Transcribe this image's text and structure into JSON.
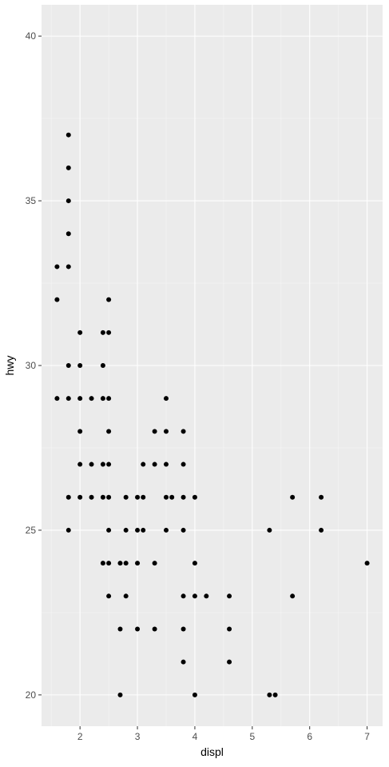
{
  "chart_data": {
    "type": "scatter",
    "title": "",
    "xlabel": "displ",
    "ylabel": "hwy",
    "xlim": [
      1.33,
      7.27
    ],
    "ylim": [
      19.05,
      40.95
    ],
    "x_ticks": [
      2,
      3,
      4,
      5,
      6,
      7
    ],
    "y_ticks": [
      20,
      25,
      30,
      35,
      40
    ],
    "grid": true,
    "legend": "none",
    "colors": {
      "panel": "#ebebeb",
      "grid_major": "#ffffff",
      "grid_minor": "#f5f5f5",
      "point": "#000000",
      "tick_text": "#4d4d4d",
      "tick_mark": "#333333"
    },
    "points": [
      {
        "x": 1.8,
        "y": 37
      },
      {
        "x": 1.8,
        "y": 36
      },
      {
        "x": 1.8,
        "y": 35
      },
      {
        "x": 1.8,
        "y": 34
      },
      {
        "x": 1.6,
        "y": 33
      },
      {
        "x": 1.8,
        "y": 33
      },
      {
        "x": 1.6,
        "y": 32
      },
      {
        "x": 2.5,
        "y": 32
      },
      {
        "x": 2.0,
        "y": 31
      },
      {
        "x": 2.4,
        "y": 31
      },
      {
        "x": 2.5,
        "y": 31
      },
      {
        "x": 1.8,
        "y": 30
      },
      {
        "x": 2.0,
        "y": 30
      },
      {
        "x": 2.4,
        "y": 30
      },
      {
        "x": 1.6,
        "y": 29
      },
      {
        "x": 1.8,
        "y": 29
      },
      {
        "x": 2.0,
        "y": 29
      },
      {
        "x": 2.2,
        "y": 29
      },
      {
        "x": 2.4,
        "y": 29
      },
      {
        "x": 2.5,
        "y": 29
      },
      {
        "x": 3.5,
        "y": 29
      },
      {
        "x": 2.0,
        "y": 28
      },
      {
        "x": 2.5,
        "y": 28
      },
      {
        "x": 3.3,
        "y": 28
      },
      {
        "x": 3.5,
        "y": 28
      },
      {
        "x": 3.8,
        "y": 28
      },
      {
        "x": 2.0,
        "y": 27
      },
      {
        "x": 2.2,
        "y": 27
      },
      {
        "x": 2.4,
        "y": 27
      },
      {
        "x": 2.5,
        "y": 27
      },
      {
        "x": 3.1,
        "y": 27
      },
      {
        "x": 3.3,
        "y": 27
      },
      {
        "x": 3.5,
        "y": 27
      },
      {
        "x": 3.8,
        "y": 27
      },
      {
        "x": 1.8,
        "y": 26
      },
      {
        "x": 2.0,
        "y": 26
      },
      {
        "x": 2.2,
        "y": 26
      },
      {
        "x": 2.4,
        "y": 26
      },
      {
        "x": 2.5,
        "y": 26
      },
      {
        "x": 2.8,
        "y": 26
      },
      {
        "x": 3.0,
        "y": 26
      },
      {
        "x": 3.1,
        "y": 26
      },
      {
        "x": 3.5,
        "y": 26
      },
      {
        "x": 3.6,
        "y": 26
      },
      {
        "x": 3.8,
        "y": 26
      },
      {
        "x": 4.0,
        "y": 26
      },
      {
        "x": 5.7,
        "y": 26
      },
      {
        "x": 6.2,
        "y": 26
      },
      {
        "x": 1.8,
        "y": 25
      },
      {
        "x": 2.5,
        "y": 25
      },
      {
        "x": 2.8,
        "y": 25
      },
      {
        "x": 3.0,
        "y": 25
      },
      {
        "x": 3.1,
        "y": 25
      },
      {
        "x": 3.5,
        "y": 25
      },
      {
        "x": 3.8,
        "y": 25
      },
      {
        "x": 5.3,
        "y": 25
      },
      {
        "x": 6.2,
        "y": 25
      },
      {
        "x": 2.4,
        "y": 24
      },
      {
        "x": 2.5,
        "y": 24
      },
      {
        "x": 2.7,
        "y": 24
      },
      {
        "x": 2.8,
        "y": 24
      },
      {
        "x": 3.0,
        "y": 24
      },
      {
        "x": 3.3,
        "y": 24
      },
      {
        "x": 4.0,
        "y": 24
      },
      {
        "x": 7.0,
        "y": 24
      },
      {
        "x": 2.5,
        "y": 23
      },
      {
        "x": 2.8,
        "y": 23
      },
      {
        "x": 3.8,
        "y": 23
      },
      {
        "x": 4.0,
        "y": 23
      },
      {
        "x": 4.2,
        "y": 23
      },
      {
        "x": 4.6,
        "y": 23
      },
      {
        "x": 5.7,
        "y": 23
      },
      {
        "x": 2.7,
        "y": 22
      },
      {
        "x": 3.0,
        "y": 22
      },
      {
        "x": 3.3,
        "y": 22
      },
      {
        "x": 3.8,
        "y": 22
      },
      {
        "x": 4.6,
        "y": 22
      },
      {
        "x": 3.8,
        "y": 21
      },
      {
        "x": 4.6,
        "y": 21
      },
      {
        "x": 2.7,
        "y": 20
      },
      {
        "x": 4.0,
        "y": 20
      },
      {
        "x": 5.3,
        "y": 20
      },
      {
        "x": 5.4,
        "y": 20
      }
    ]
  }
}
